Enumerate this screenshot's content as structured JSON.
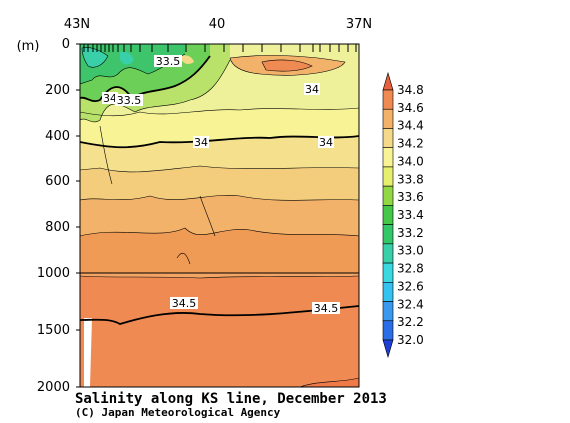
{
  "chart_data": {
    "type": "heatmap",
    "title": "Salinity along KS line, December 2013",
    "credit": "(C) Japan Meteorological Agency",
    "x_ticks": [
      "43N",
      "40",
      "37N"
    ],
    "y_unit": "(m)",
    "y_ticks": [
      "0",
      "200",
      "400",
      "600",
      "800",
      "1000",
      "1500",
      "2000"
    ],
    "y_upper_range": [
      0,
      1000
    ],
    "y_lower_range": [
      1000,
      2000
    ],
    "colorbar": {
      "levels": [
        32.0,
        32.2,
        32.4,
        32.6,
        32.8,
        33.0,
        33.2,
        33.4,
        33.6,
        33.8,
        34.0,
        34.2,
        34.4,
        34.6,
        34.8
      ],
      "labels": [
        "32.0",
        "32.2",
        "32.4",
        "32.6",
        "32.8",
        "33.0",
        "33.2",
        "33.4",
        "33.6",
        "33.8",
        "34.0",
        "34.2",
        "34.4",
        "34.6",
        "34.8"
      ],
      "colors": [
        "#1d3fd8",
        "#2a6de6",
        "#3b98ef",
        "#34c3f1",
        "#3ad8e0",
        "#39cfa8",
        "#33c76a",
        "#45c84a",
        "#92d845",
        "#e6ef6e",
        "#f8f496",
        "#f4d98a",
        "#f3b26a",
        "#ef8a53",
        "#e8613e"
      ]
    },
    "contour_labels": [
      {
        "text": "33.5"
      },
      {
        "text": "34"
      },
      {
        "text": "33.5"
      },
      {
        "text": "34"
      },
      {
        "text": "34"
      },
      {
        "text": "34"
      },
      {
        "text": "34.5"
      },
      {
        "text": "34.5"
      }
    ]
  }
}
